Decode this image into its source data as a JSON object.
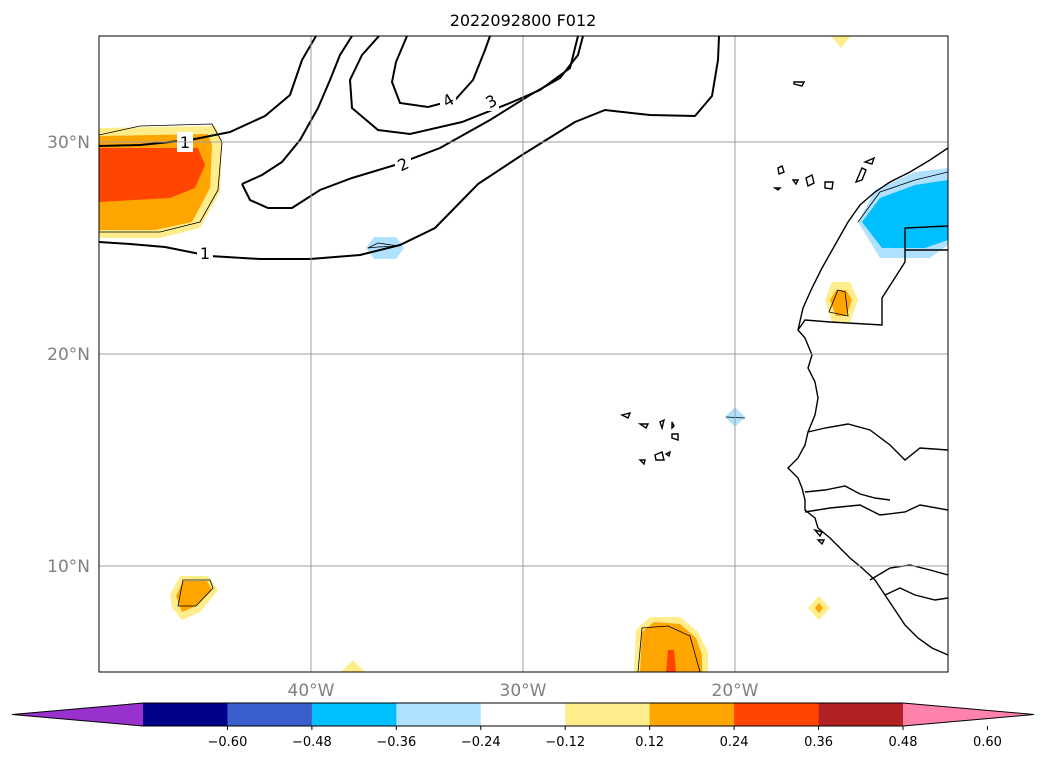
{
  "title": "2022092800 F012",
  "map": {
    "lat_labels": [
      "30°N",
      "20°N",
      "10°N"
    ],
    "lon_labels": [
      "40°W",
      "30°W",
      "20°W"
    ],
    "contour_labels": [
      "1",
      "2",
      "3",
      "4",
      "1"
    ]
  },
  "colorbar": {
    "ticks": [
      "−0.60",
      "−0.48",
      "−0.36",
      "−0.24",
      "−0.12",
      "0.12",
      "0.24",
      "0.36",
      "0.48",
      "0.60"
    ],
    "colors": [
      "#9932CC",
      "#00008B",
      "#3A5FCD",
      "#00BFFF",
      "#B0E2FF",
      "#FFFFFF",
      "#FFEC8B",
      "#FFA500",
      "#FF4500",
      "#B22222",
      "#FF82AB"
    ]
  }
}
